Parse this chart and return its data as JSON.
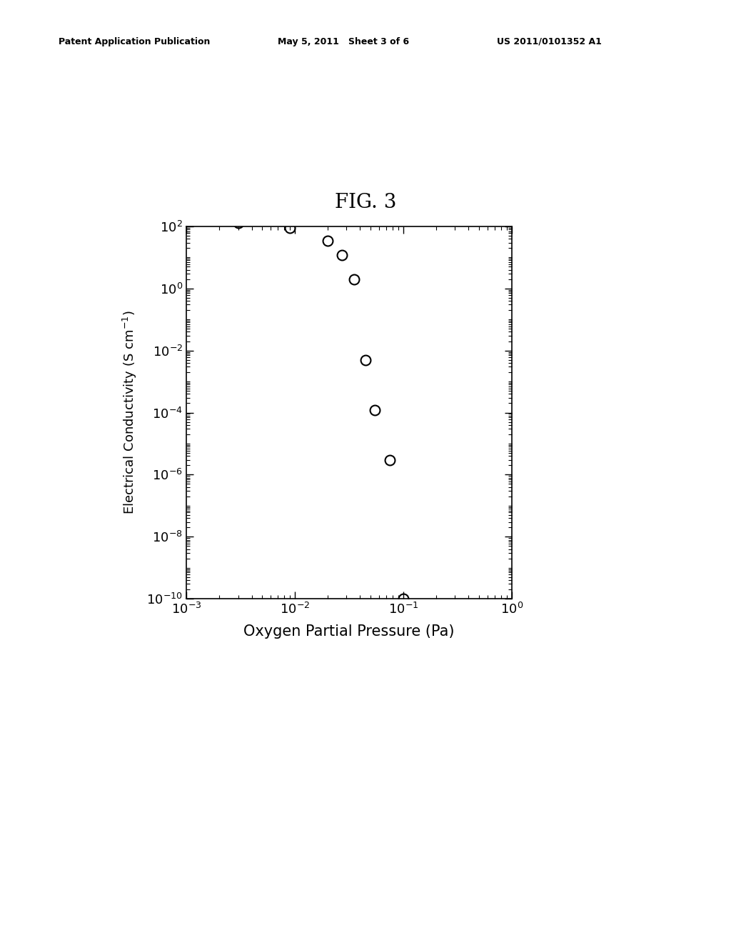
{
  "title": "FIG. 3",
  "xlabel": "Oxygen Partial Pressure (Pa)",
  "x_data": [
    0.003,
    0.009,
    0.02,
    0.027,
    0.035,
    0.045,
    0.055,
    0.075,
    0.1
  ],
  "y_data": [
    130.0,
    90.0,
    35.0,
    12.0,
    2.0,
    0.005,
    0.00012,
    3e-06,
    1e-10
  ],
  "xlim_log": [
    -3,
    0
  ],
  "ylim_log": [
    -10,
    2
  ],
  "ytick_exponents": [
    2,
    0,
    -2,
    -4,
    -6,
    -8,
    -10
  ],
  "xtick_exponents": [
    -3,
    -2,
    -1,
    0
  ],
  "marker_size": 10,
  "marker_lw": 1.5,
  "background_color": "#ffffff",
  "text_color": "#000000",
  "header_left": "Patent Application Publication",
  "header_center": "May 5, 2011   Sheet 3 of 6",
  "header_right": "US 2011/0101352 A1"
}
